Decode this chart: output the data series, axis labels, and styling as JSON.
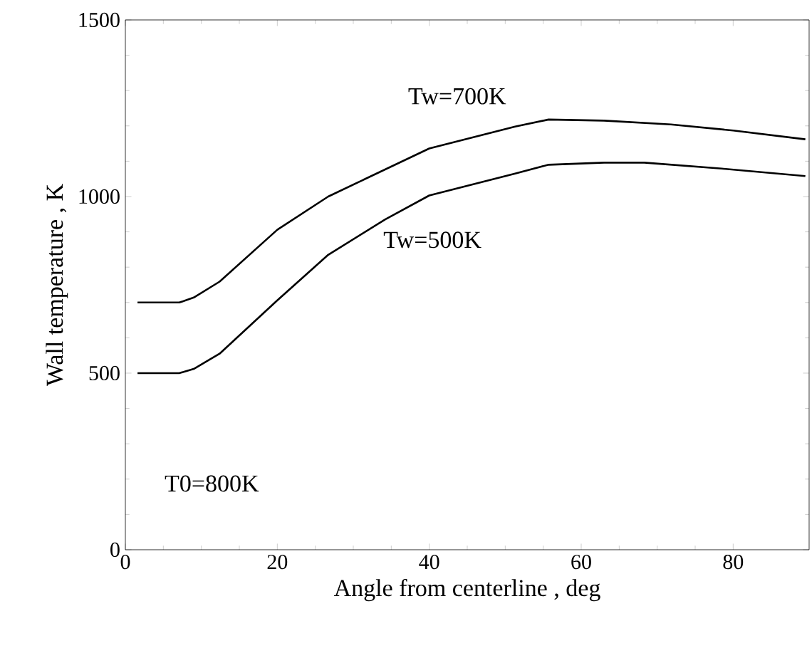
{
  "chart_data": {
    "type": "line",
    "xlabel": "Angle from centerline , deg",
    "ylabel": "Wall temperature , K",
    "xlim": [
      0,
      90
    ],
    "xticks": [
      0,
      20,
      40,
      60,
      80
    ],
    "ylim": [
      0,
      1500
    ],
    "yticks": [
      0,
      500,
      1000,
      1500
    ],
    "series": [
      {
        "name": "Tw=700K",
        "color": "#000000",
        "x": [
          1.6,
          7.1,
          9,
          12.4,
          20,
          26.7,
          40,
          51.3,
          55.7,
          63,
          71.8,
          80,
          89.5
        ],
        "values": [
          700,
          700,
          714,
          759,
          906,
          1000,
          1136,
          1198,
          1218,
          1215,
          1204,
          1187,
          1162
        ]
      },
      {
        "name": "Tw=500K",
        "color": "#000000",
        "x": [
          1.6,
          7.1,
          9,
          12.4,
          20,
          26.7,
          34.2,
          40,
          51.3,
          55.7,
          63,
          68.3,
          78.5,
          89.5
        ],
        "values": [
          500,
          500,
          512,
          555,
          706,
          835,
          935,
          1003,
          1065,
          1090,
          1096,
          1096,
          1079,
          1058
        ]
      }
    ],
    "annotations": [
      "T0=800K"
    ],
    "grid": false,
    "marker": "none",
    "line_style": "solid"
  }
}
